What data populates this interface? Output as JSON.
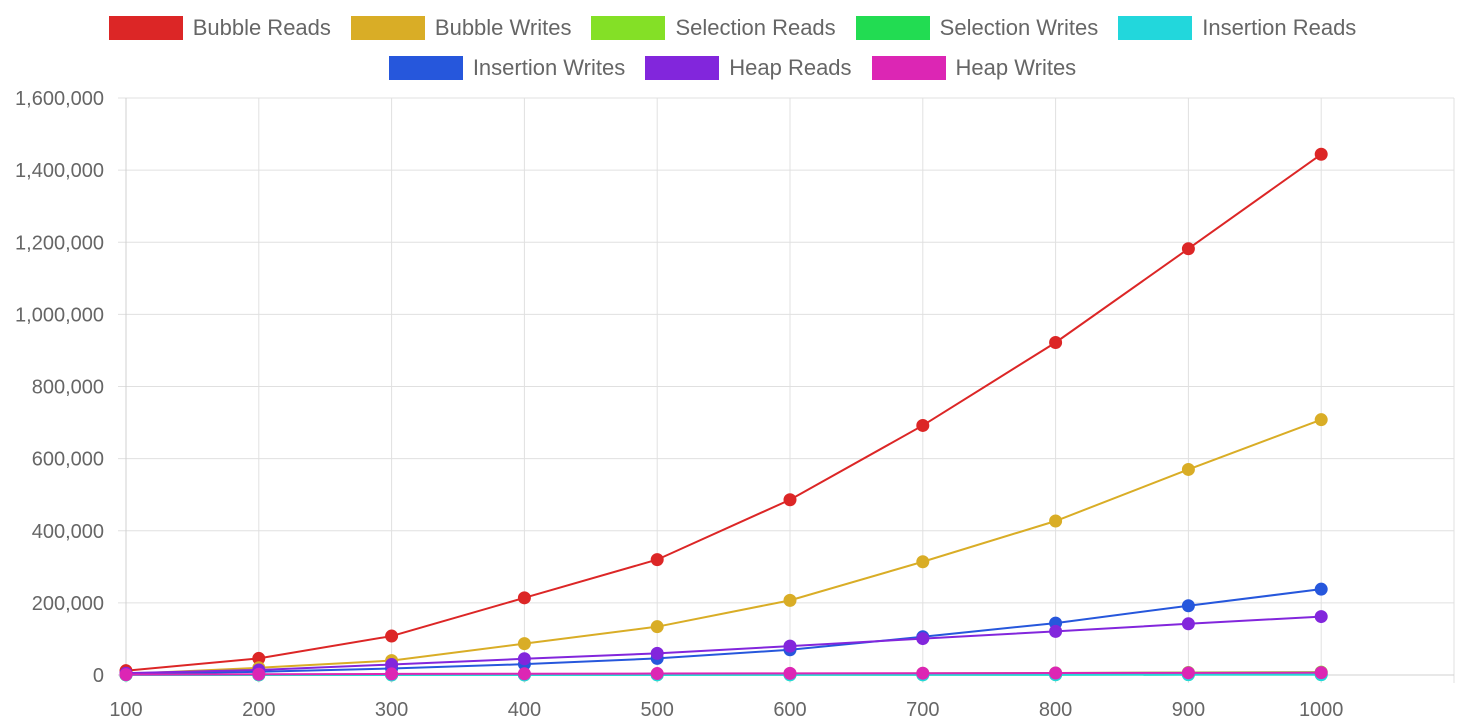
{
  "chart_data": {
    "type": "line",
    "title": "",
    "xlabel": "",
    "ylabel": "",
    "x": [
      100,
      200,
      300,
      400,
      500,
      600,
      700,
      800,
      900,
      1000
    ],
    "xlim": [
      100,
      1100
    ],
    "ylim": [
      0,
      1600000
    ],
    "yticks": [
      0,
      200000,
      400000,
      600000,
      800000,
      1000000,
      1200000,
      1400000,
      1600000
    ],
    "ytick_labels": [
      "0",
      "200,000",
      "400,000",
      "600,000",
      "800,000",
      "1,000,000",
      "1,200,000",
      "1,400,000",
      "1,600,000"
    ],
    "xtick_labels": [
      "100",
      "200",
      "300",
      "400",
      "500",
      "600",
      "700",
      "800",
      "900",
      "1000"
    ],
    "grid": true,
    "legend_position": "top",
    "series": [
      {
        "name": "Bubble Reads",
        "color": "#dc2626",
        "values": [
          12000,
          46000,
          108000,
          214000,
          320000,
          486000,
          692000,
          922000,
          1182000,
          1444000
        ]
      },
      {
        "name": "Bubble Writes",
        "color": "#d9ad26",
        "values": [
          3000,
          20000,
          40000,
          87000,
          134000,
          207000,
          314000,
          427000,
          570000,
          708000
        ]
      },
      {
        "name": "Selection Reads",
        "color": "#84e026",
        "values": [
          200,
          500,
          1000,
          1500,
          2500,
          3500,
          4500,
          5500,
          7000,
          8000
        ]
      },
      {
        "name": "Selection Writes",
        "color": "#22dc52",
        "values": [
          100,
          200,
          300,
          400,
          500,
          600,
          700,
          800,
          900,
          1000
        ]
      },
      {
        "name": "Insertion Reads",
        "color": "#22d7dc",
        "values": [
          100,
          200,
          300,
          400,
          500,
          600,
          700,
          800,
          900,
          1000
        ]
      },
      {
        "name": "Insertion Writes",
        "color": "#2657dc",
        "values": [
          3000,
          9000,
          18000,
          30000,
          46000,
          70000,
          106000,
          144000,
          192000,
          238000
        ]
      },
      {
        "name": "Heap Reads",
        "color": "#8226dc",
        "values": [
          5000,
          14000,
          29000,
          45000,
          60000,
          80000,
          101000,
          121000,
          142000,
          162000
        ]
      },
      {
        "name": "Heap Writes",
        "color": "#dc26b4",
        "values": [
          1000,
          2000,
          3000,
          3500,
          4000,
          4500,
          5000,
          5500,
          6000,
          6500
        ]
      }
    ]
  }
}
